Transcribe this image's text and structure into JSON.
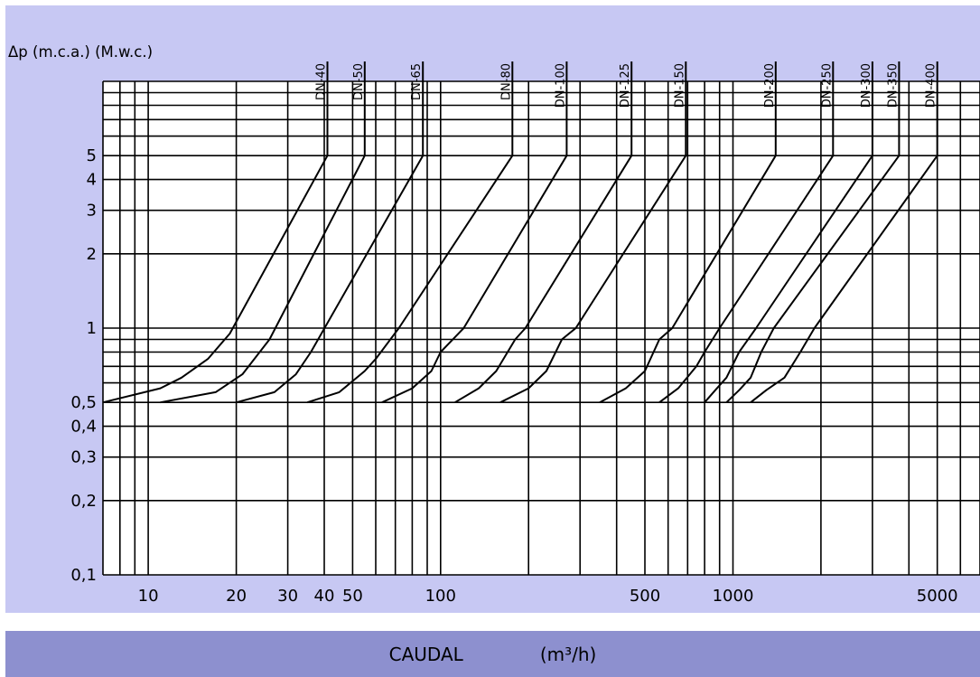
{
  "colors": {
    "panel_background": "#c7c8f3",
    "plot_background": "#ffffff",
    "footer_background": "#8d90cf",
    "line": "#000000"
  },
  "chart_data": {
    "type": "line",
    "title": "",
    "ylabel": "Δp (m.c.a.) (M.w.c.)",
    "xlabel": "CAUDAL",
    "xunit": "(m³/h)",
    "x_scale": "log",
    "y_scale": "log",
    "xlim": [
      7,
      7000
    ],
    "ylim": [
      0.1,
      10
    ],
    "grid": true,
    "x_tick_labels": [
      {
        "value": 10,
        "label": "10"
      },
      {
        "value": 20,
        "label": "20"
      },
      {
        "value": 30,
        "label": "30"
      },
      {
        "value": 40,
        "label": "40"
      },
      {
        "value": 50,
        "label": "50"
      },
      {
        "value": 100,
        "label": "100"
      },
      {
        "value": 500,
        "label": "500"
      },
      {
        "value": 1000,
        "label": "1000"
      },
      {
        "value": 5000,
        "label": "5000"
      }
    ],
    "y_tick_labels": [
      {
        "value": 0.1,
        "label": "0,1"
      },
      {
        "value": 0.2,
        "label": "0,2"
      },
      {
        "value": 0.3,
        "label": "0,3"
      },
      {
        "value": 0.4,
        "label": "0,4"
      },
      {
        "value": 0.5,
        "label": "0,5"
      },
      {
        "value": 1,
        "label": "1"
      },
      {
        "value": 2,
        "label": "2"
      },
      {
        "value": 3,
        "label": "3"
      },
      {
        "value": 4,
        "label": "4"
      },
      {
        "value": 5,
        "label": "5"
      }
    ],
    "x_grid": [
      7,
      8,
      9,
      10,
      20,
      30,
      40,
      50,
      60,
      70,
      80,
      90,
      100,
      200,
      300,
      400,
      500,
      600,
      700,
      800,
      900,
      1000,
      2000,
      3000,
      4000,
      5000,
      6000,
      7000
    ],
    "y_grid": [
      0.1,
      0.2,
      0.3,
      0.4,
      0.5,
      0.6,
      0.7,
      0.8,
      0.9,
      1,
      2,
      3,
      4,
      5,
      6,
      7,
      8,
      9,
      10
    ],
    "series": [
      {
        "name": "DN-40",
        "points": [
          [
            7,
            0.5
          ],
          [
            11,
            0.57
          ],
          [
            13,
            0.63
          ],
          [
            16,
            0.75
          ],
          [
            19,
            0.95
          ],
          [
            41,
            5
          ],
          [
            41,
            10
          ]
        ]
      },
      {
        "name": "DN-50",
        "points": [
          [
            11,
            0.5
          ],
          [
            17,
            0.55
          ],
          [
            21,
            0.65
          ],
          [
            26,
            0.9
          ],
          [
            55,
            5
          ],
          [
            55,
            10
          ]
        ]
      },
      {
        "name": "DN-65",
        "points": [
          [
            20,
            0.5
          ],
          [
            27,
            0.55
          ],
          [
            32,
            0.65
          ],
          [
            36,
            0.8
          ],
          [
            87,
            5
          ],
          [
            87,
            10
          ]
        ]
      },
      {
        "name": "DN-80",
        "points": [
          [
            35,
            0.5
          ],
          [
            45,
            0.55
          ],
          [
            55,
            0.67
          ],
          [
            60,
            0.75
          ],
          [
            72,
            1
          ],
          [
            176,
            5
          ],
          [
            176,
            10
          ]
        ]
      },
      {
        "name": "DN-100",
        "points": [
          [
            63,
            0.5
          ],
          [
            80,
            0.57
          ],
          [
            93,
            0.67
          ],
          [
            100,
            0.8
          ],
          [
            120,
            1
          ],
          [
            270,
            5
          ],
          [
            270,
            10
          ]
        ]
      },
      {
        "name": "DN-125",
        "points": [
          [
            112,
            0.5
          ],
          [
            135,
            0.57
          ],
          [
            155,
            0.67
          ],
          [
            180,
            0.9
          ],
          [
            195,
            1
          ],
          [
            450,
            5
          ],
          [
            450,
            10
          ]
        ]
      },
      {
        "name": "DN-150",
        "points": [
          [
            160,
            0.5
          ],
          [
            200,
            0.57
          ],
          [
            230,
            0.67
          ],
          [
            260,
            0.9
          ],
          [
            290,
            1
          ],
          [
            690,
            5
          ],
          [
            690,
            10
          ]
        ]
      },
      {
        "name": "DN-200",
        "points": [
          [
            350,
            0.5
          ],
          [
            430,
            0.57
          ],
          [
            500,
            0.67
          ],
          [
            560,
            0.9
          ],
          [
            620,
            1
          ],
          [
            1400,
            5
          ],
          [
            1400,
            10
          ]
        ]
      },
      {
        "name": "DN-250",
        "points": [
          [
            560,
            0.5
          ],
          [
            650,
            0.57
          ],
          [
            750,
            0.7
          ],
          [
            800,
            0.8
          ],
          [
            900,
            1
          ],
          [
            2200,
            5
          ],
          [
            2200,
            10
          ]
        ]
      },
      {
        "name": "DN-300",
        "points": [
          [
            800,
            0.5
          ],
          [
            870,
            0.56
          ],
          [
            950,
            0.63
          ],
          [
            1050,
            0.8
          ],
          [
            1200,
            1
          ],
          [
            3000,
            5
          ],
          [
            3000,
            10
          ]
        ]
      },
      {
        "name": "DN-350",
        "points": [
          [
            950,
            0.5
          ],
          [
            1050,
            0.56
          ],
          [
            1150,
            0.63
          ],
          [
            1250,
            0.8
          ],
          [
            1380,
            1
          ],
          [
            3700,
            5
          ],
          [
            3700,
            10
          ]
        ]
      },
      {
        "name": "DN-400",
        "points": [
          [
            1150,
            0.5
          ],
          [
            1300,
            0.56
          ],
          [
            1500,
            0.63
          ],
          [
            1700,
            0.8
          ],
          [
            1900,
            1
          ],
          [
            5000,
            5
          ],
          [
            5000,
            10
          ]
        ]
      }
    ]
  }
}
